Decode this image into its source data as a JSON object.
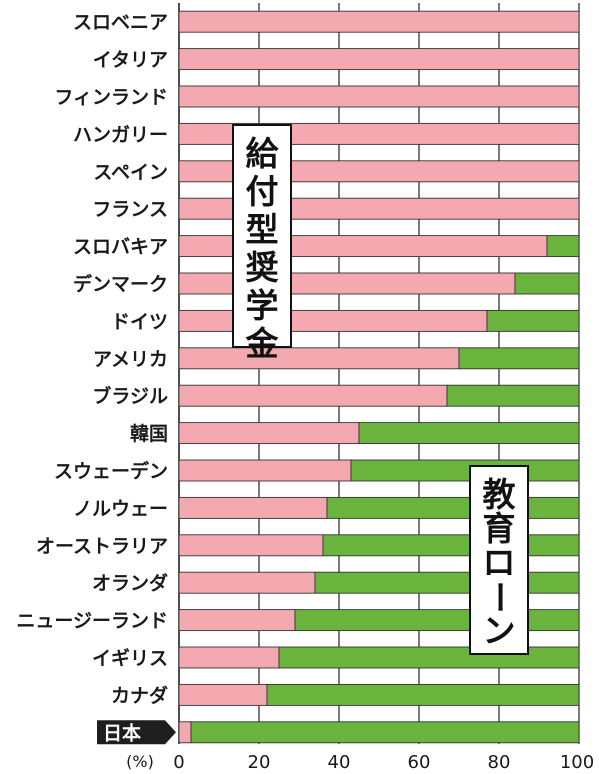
{
  "chart_data": {
    "type": "bar",
    "stacked": true,
    "orientation": "horizontal",
    "categories": [
      "スロベニア",
      "イタリア",
      "フィンランド",
      "ハンガリー",
      "スペイン",
      "フランス",
      "スロバキア",
      "デンマーク",
      "ドイツ",
      "アメリカ",
      "ブラジル",
      "韓国",
      "スウェーデン",
      "ノルウェー",
      "オーストラリア",
      "オランダ",
      "ニュージーランド",
      "イギリス",
      "カナダ",
      "日本"
    ],
    "highlighted_category": "日本",
    "series": [
      {
        "name": "給付型奨学金",
        "color": "#f4a9b0",
        "values": [
          100,
          100,
          100,
          100,
          100,
          100,
          92,
          84,
          77,
          70,
          67,
          45,
          43,
          37,
          36,
          34,
          29,
          25,
          22,
          3
        ]
      },
      {
        "name": "教育ローン",
        "color": "#6ab43e",
        "values": [
          0,
          0,
          0,
          0,
          0,
          0,
          8,
          16,
          23,
          30,
          33,
          55,
          57,
          63,
          64,
          66,
          71,
          75,
          78,
          97
        ]
      }
    ],
    "xlim": [
      0,
      100
    ],
    "xticks": [
      0,
      20,
      40,
      60,
      80,
      100
    ],
    "xunit": "(%)",
    "grid": true
  }
}
